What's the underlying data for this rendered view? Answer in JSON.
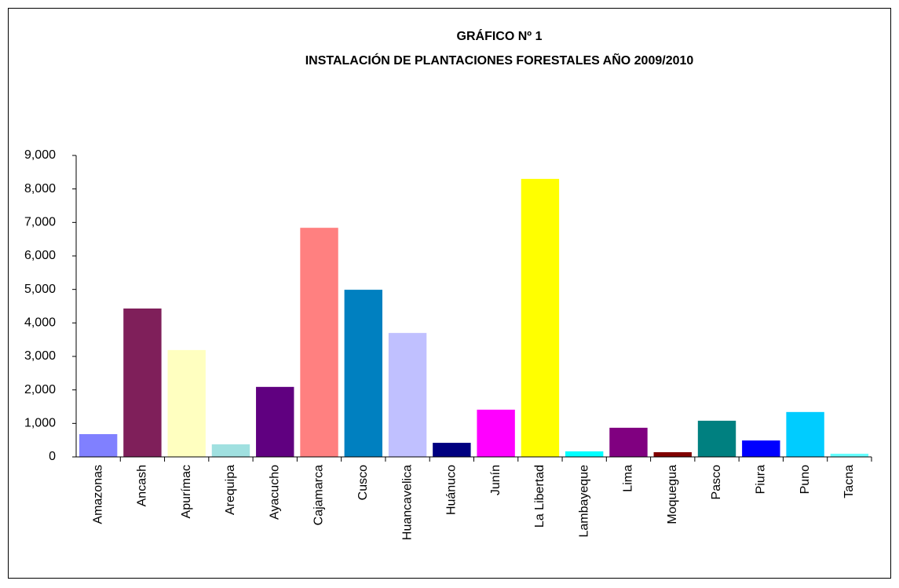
{
  "chart_data": {
    "type": "bar",
    "title": "GRÁFICO Nº 1",
    "subtitle": "INSTALACIÓN DE PLANTACIONES FORESTALES AÑO 2009/2010",
    "categories": [
      "Amazonas",
      "Ancash",
      "Apurímac",
      "Arequipa",
      "Ayacucho",
      "Cajamarca",
      "Cusco",
      "Huancavelica",
      "Huánuco",
      "Junín",
      "La Libertad",
      "Lambayeque",
      "Lima",
      "Moquegua",
      "Pasco",
      "Piura",
      "Puno",
      "Tacna"
    ],
    "values": [
      680,
      4430,
      3190,
      375,
      2090,
      6840,
      4990,
      3700,
      420,
      1410,
      8300,
      165,
      870,
      140,
      1080,
      490,
      1340,
      95
    ],
    "colors": [
      "#8080ff",
      "#7f1f5a",
      "#ffffc0",
      "#a0e0e0",
      "#600080",
      "#ff8080",
      "#0080c0",
      "#c0c0ff",
      "#000080",
      "#ff00ff",
      "#ffff00",
      "#00ffff",
      "#800080",
      "#800000",
      "#008080",
      "#0000ff",
      "#00ccff",
      "#66ffff"
    ],
    "ylim": [
      0,
      9000
    ],
    "yticks": [
      0,
      {
        "value": 1000,
        "label": "1,000"
      },
      {
        "value": 2000,
        "label": "2,000"
      },
      {
        "value": 3000,
        "label": "3,000"
      },
      {
        "value": 4000,
        "label": "4,000"
      },
      {
        "value": 5000,
        "label": "5,000"
      },
      {
        "value": 6000,
        "label": "6,000"
      },
      {
        "value": 7000,
        "label": "7,000"
      },
      {
        "value": 8000,
        "label": "8,000"
      },
      {
        "value": 9000,
        "label": "9,000"
      }
    ],
    "grid": false
  }
}
